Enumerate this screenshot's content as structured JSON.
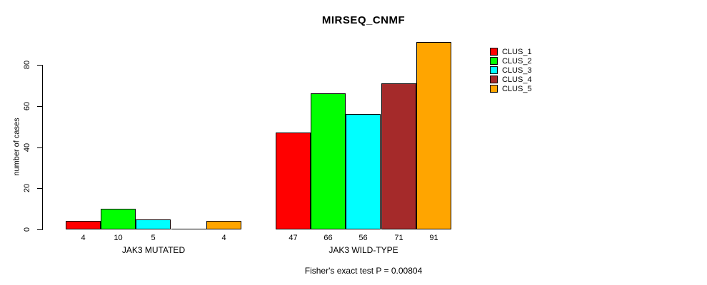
{
  "title": "MIRSEQ_CNMF",
  "y_axis": {
    "label": "number of cases"
  },
  "subtitle": "Fisher's exact test P = 0.00804",
  "chart_data": {
    "type": "bar",
    "title": "MIRSEQ_CNMF",
    "xlabel": "",
    "ylabel": "number of cases",
    "ylim": [
      0,
      91
    ],
    "yticks": [
      0,
      20,
      40,
      60,
      80
    ],
    "grid": false,
    "legend_position": "right",
    "groups": [
      "JAK3 MUTATED",
      "JAK3 WILD-TYPE"
    ],
    "series": [
      {
        "name": "CLUS_1",
        "color": "#FF0000",
        "values": [
          4,
          47
        ]
      },
      {
        "name": "CLUS_2",
        "color": "#00FF00",
        "values": [
          10,
          66
        ]
      },
      {
        "name": "CLUS_3",
        "color": "#00FFFF",
        "values": [
          5,
          56
        ]
      },
      {
        "name": "CLUS_4",
        "color": "#A52A2A",
        "values": [
          0,
          71
        ]
      },
      {
        "name": "CLUS_5",
        "color": "#FFA500",
        "values": [
          4,
          91
        ]
      }
    ],
    "bar_value_labels": [
      [
        "4",
        "10",
        "5",
        "",
        "4"
      ],
      [
        "47",
        "66",
        "56",
        "71",
        "91"
      ]
    ],
    "annotation": "Fisher's exact test P = 0.00804"
  }
}
